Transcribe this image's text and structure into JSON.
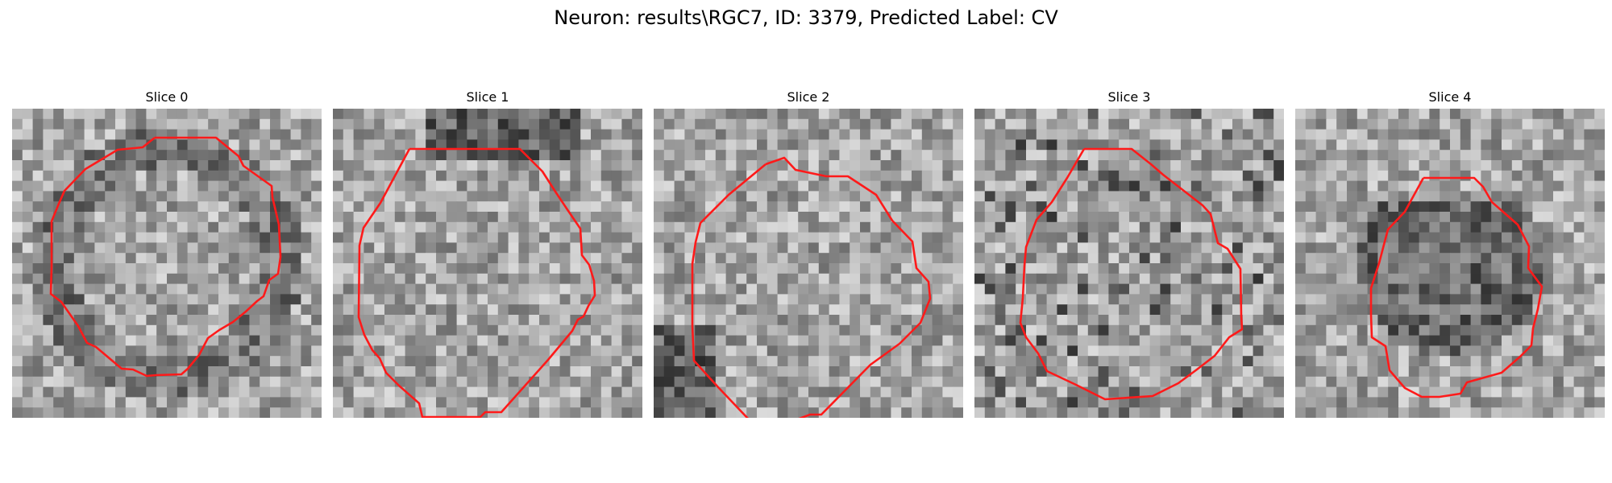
{
  "figure": {
    "title": "Neuron: results\\RGC7, ID: 3379, Predicted Label: CV"
  },
  "panels": [
    {
      "title": "Slice 0"
    },
    {
      "title": "Slice 1"
    },
    {
      "title": "Slice 2"
    },
    {
      "title": "Slice 3"
    },
    {
      "title": "Slice 4"
    }
  ],
  "colors": {
    "contour": "#ff1a1a",
    "background": "#ffffff"
  }
}
